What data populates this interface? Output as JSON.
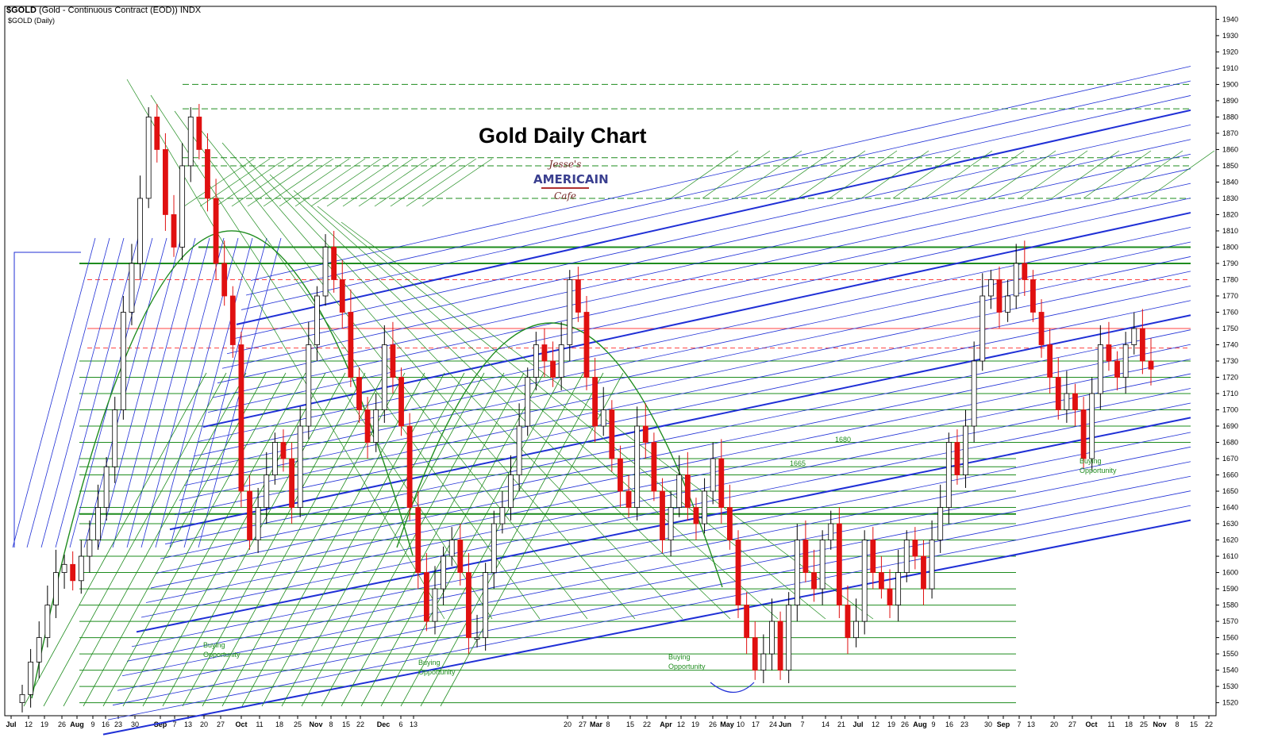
{
  "header": {
    "symbol": "$GOLD",
    "description": "(Gold - Continuous Contract (EOD)) INDX",
    "subtitle": "$GOLD (Daily)"
  },
  "logo": {
    "line1": "Jesse's",
    "line2": "AMERICAIN",
    "line3": "Cafe"
  },
  "colors": {
    "up_candle": "#ffffff",
    "down_candle": "#e01010",
    "support_green": "#1e8c1e",
    "trend_blue": "#1f2fd6",
    "resistance_red": "#ff4040"
  },
  "chart_data": {
    "type": "candlestick",
    "title": "Gold Daily Chart",
    "ylim": [
      1512,
      1948
    ],
    "y_ticks": [
      1520,
      1530,
      1540,
      1550,
      1560,
      1570,
      1580,
      1590,
      1600,
      1610,
      1620,
      1630,
      1640,
      1650,
      1660,
      1670,
      1680,
      1690,
      1700,
      1710,
      1720,
      1730,
      1740,
      1750,
      1760,
      1770,
      1780,
      1790,
      1800,
      1810,
      1820,
      1830,
      1840,
      1850,
      1860,
      1870,
      1880,
      1890,
      1900,
      1910,
      1920,
      1930,
      1940
    ],
    "x_tick_labels": [
      "Jul",
      "12",
      "19",
      "26",
      "Aug",
      "9",
      "16",
      "23",
      "30",
      "Sep",
      "7",
      "13",
      "20",
      "27",
      "Oct",
      "11",
      "18",
      "25",
      "Nov",
      "8",
      "15",
      "22",
      "Dec",
      "6",
      "13",
      "20",
      "27",
      "Mar",
      "8",
      "15",
      "22",
      "Apr",
      "12",
      "19",
      "26",
      "May",
      "10",
      "17",
      "24",
      "Jun",
      "7",
      "14",
      "21",
      "Jul",
      "12",
      "19",
      "26",
      "Aug",
      "9",
      "16",
      "23",
      "30",
      "Sep",
      "7",
      "13",
      "20",
      "27",
      "Oct",
      "11",
      "18",
      "25",
      "Nov",
      "8",
      "15",
      "22",
      "Dec",
      "6",
      "13",
      "20"
    ],
    "price_series": [
      {
        "segment": 1,
        "closes": [
          1525,
          1545,
          1560,
          1580,
          1600,
          1605,
          1595,
          1610,
          1620,
          1640,
          1665,
          1700,
          1760,
          1790,
          1830,
          1880,
          1860,
          1820,
          1800,
          1850,
          1880,
          1860,
          1830,
          1790,
          1770,
          1740,
          1650,
          1620,
          1640,
          1660,
          1680,
          1670,
          1640,
          1690,
          1740,
          1770,
          1800,
          1780,
          1760,
          1720,
          1700,
          1680,
          1700,
          1740,
          1720,
          1690,
          1640,
          1600,
          1570,
          1590,
          1610,
          1620,
          1600,
          1560,
          1560,
          1600,
          1630,
          1640,
          1660,
          1690,
          1720,
          1740,
          1730,
          1720,
          1740,
          1780,
          1760,
          1720,
          1690,
          1700,
          1670,
          1650,
          1640,
          1690,
          1680,
          1650,
          1620,
          1640,
          1660,
          1640,
          1630,
          1650,
          1670,
          1640,
          1620,
          1580,
          1560,
          1540,
          1550,
          1570,
          1540,
          1580,
          1620,
          1600,
          1590,
          1620,
          1630,
          1580,
          1560,
          1570,
          1620,
          1600,
          1590,
          1580,
          1600,
          1620,
          1610,
          1590,
          1620,
          1640,
          1680,
          1660,
          1690,
          1730,
          1770,
          1780,
          1760,
          1770,
          1790,
          1780,
          1760,
          1740,
          1720,
          1700,
          1710,
          1700,
          1670,
          1710,
          1740,
          1730,
          1720,
          1740,
          1750,
          1730,
          1725
        ]
      }
    ],
    "levels": {
      "green": [
        1520,
        1530,
        1540,
        1550,
        1560,
        1570,
        1580,
        1590,
        1600,
        1610,
        1620,
        1630,
        1636,
        1640,
        1650,
        1660,
        1665,
        1670,
        1680,
        1690,
        1700,
        1710,
        1720,
        1730,
        1790,
        1800,
        1830,
        1850,
        1855,
        1885,
        1900
      ],
      "red": [
        1738,
        1750,
        1780
      ]
    },
    "annotations": [
      "Buying Opportunity",
      "Buying Opportunity",
      "Buying Opportunity",
      "Buying Opportunity",
      "1680",
      "1665"
    ]
  }
}
